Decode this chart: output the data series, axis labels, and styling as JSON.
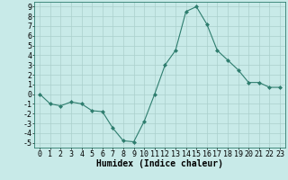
{
  "x": [
    0,
    1,
    2,
    3,
    4,
    5,
    6,
    7,
    8,
    9,
    10,
    11,
    12,
    13,
    14,
    15,
    16,
    17,
    18,
    19,
    20,
    21,
    22,
    23
  ],
  "y": [
    0,
    -1,
    -1.2,
    -0.8,
    -1,
    -1.7,
    -1.8,
    -3.5,
    -4.8,
    -4.9,
    -2.8,
    0,
    3,
    4.5,
    8.5,
    9,
    7.2,
    4.5,
    3.5,
    2.5,
    1.2,
    1.2,
    0.7,
    0.7
  ],
  "line_color": "#2e7d6e",
  "marker": "D",
  "marker_size": 2.0,
  "bg_color": "#c8eae8",
  "grid_color": "#aacfcc",
  "xlabel": "Humidex (Indice chaleur)",
  "xlabel_fontsize": 7,
  "tick_fontsize": 6,
  "xlim": [
    -0.5,
    23.5
  ],
  "ylim": [
    -5.5,
    9.5
  ],
  "yticks": [
    -5,
    -4,
    -3,
    -2,
    -1,
    0,
    1,
    2,
    3,
    4,
    5,
    6,
    7,
    8,
    9
  ],
  "xticks": [
    0,
    1,
    2,
    3,
    4,
    5,
    6,
    7,
    8,
    9,
    10,
    11,
    12,
    13,
    14,
    15,
    16,
    17,
    18,
    19,
    20,
    21,
    22,
    23
  ]
}
